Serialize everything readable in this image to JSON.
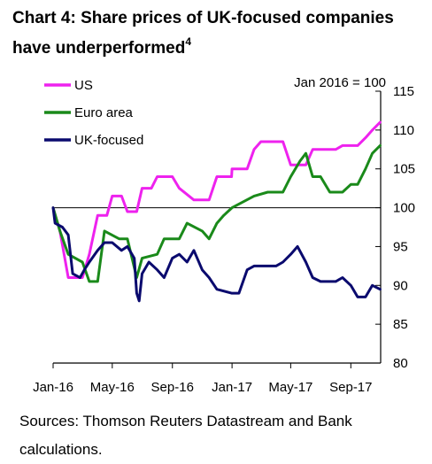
{
  "title": "Chart 4:  Share prices of UK-focused companies have underperformed",
  "title_footnote": "4",
  "sources": "Sources:  Thomson Reuters Datastream and Bank calculations.",
  "chart_data": {
    "type": "line",
    "index_note": "Jan 2016 = 100",
    "ylim": [
      80,
      115
    ],
    "yticks": [
      80,
      85,
      90,
      95,
      100,
      105,
      110,
      115
    ],
    "x_range": [
      "2016-01-01",
      "2017-11-01"
    ],
    "xticks": [
      {
        "label": "Jan-16",
        "date": "2016-01-01"
      },
      {
        "label": "May-16",
        "date": "2016-05-01"
      },
      {
        "label": "Sep-16",
        "date": "2016-09-01"
      },
      {
        "label": "Jan-17",
        "date": "2017-01-01"
      },
      {
        "label": "May-17",
        "date": "2017-05-01"
      },
      {
        "label": "Sep-17",
        "date": "2017-09-01"
      }
    ],
    "gridlines": false,
    "reference_line": 100,
    "legend_position": "top-left",
    "series": [
      {
        "name": "US",
        "color": "#ee22ee",
        "points": [
          [
            "2016-01-01",
            100
          ],
          [
            "2016-01-15",
            97
          ],
          [
            "2016-02-01",
            91
          ],
          [
            "2016-03-01",
            91
          ],
          [
            "2016-03-15",
            94
          ],
          [
            "2016-04-01",
            99
          ],
          [
            "2016-04-20",
            99
          ],
          [
            "2016-05-01",
            101.5
          ],
          [
            "2016-05-20",
            101.5
          ],
          [
            "2016-06-01",
            99.5
          ],
          [
            "2016-06-20",
            99.5
          ],
          [
            "2016-07-01",
            102.5
          ],
          [
            "2016-07-20",
            102.5
          ],
          [
            "2016-08-01",
            104
          ],
          [
            "2016-09-01",
            104
          ],
          [
            "2016-09-15",
            102.5
          ],
          [
            "2016-10-15",
            101
          ],
          [
            "2016-11-15",
            101
          ],
          [
            "2016-12-01",
            104
          ],
          [
            "2016-12-31",
            104
          ],
          [
            "2017-01-01",
            105
          ],
          [
            "2017-02-01",
            105
          ],
          [
            "2017-02-15",
            107.5
          ],
          [
            "2017-03-01",
            108.5
          ],
          [
            "2017-04-15",
            108.5
          ],
          [
            "2017-05-01",
            105.5
          ],
          [
            "2017-06-01",
            105.5
          ],
          [
            "2017-06-15",
            107.5
          ],
          [
            "2017-08-01",
            107.5
          ],
          [
            "2017-08-15",
            108
          ],
          [
            "2017-09-15",
            108
          ],
          [
            "2017-10-01",
            109
          ],
          [
            "2017-10-15",
            110
          ],
          [
            "2017-10-31",
            111
          ]
        ]
      },
      {
        "name": "Euro area",
        "color": "#1a8a1a",
        "points": [
          [
            "2016-01-01",
            100
          ],
          [
            "2016-01-15",
            97
          ],
          [
            "2016-02-01",
            94
          ],
          [
            "2016-03-01",
            93
          ],
          [
            "2016-03-15",
            90.5
          ],
          [
            "2016-04-01",
            90.5
          ],
          [
            "2016-04-15",
            97
          ],
          [
            "2016-05-15",
            96
          ],
          [
            "2016-06-01",
            96
          ],
          [
            "2016-06-20",
            91
          ],
          [
            "2016-07-01",
            93.5
          ],
          [
            "2016-08-01",
            94
          ],
          [
            "2016-08-15",
            96
          ],
          [
            "2016-09-15",
            96
          ],
          [
            "2016-10-01",
            98
          ],
          [
            "2016-11-01",
            97
          ],
          [
            "2016-11-15",
            96
          ],
          [
            "2016-12-01",
            98
          ],
          [
            "2016-12-15",
            99
          ],
          [
            "2017-01-01",
            100
          ],
          [
            "2017-02-15",
            101.5
          ],
          [
            "2017-03-15",
            102
          ],
          [
            "2017-04-15",
            102
          ],
          [
            "2017-05-01",
            104
          ],
          [
            "2017-05-20",
            106
          ],
          [
            "2017-06-01",
            107
          ],
          [
            "2017-06-15",
            104
          ],
          [
            "2017-07-01",
            104
          ],
          [
            "2017-07-20",
            102
          ],
          [
            "2017-08-15",
            102
          ],
          [
            "2017-09-01",
            103
          ],
          [
            "2017-09-15",
            103
          ],
          [
            "2017-10-01",
            105
          ],
          [
            "2017-10-15",
            107
          ],
          [
            "2017-10-31",
            108
          ]
        ]
      },
      {
        "name": "UK-focused",
        "color": "#0a0a6e",
        "points": [
          [
            "2016-01-01",
            100
          ],
          [
            "2016-01-05",
            98
          ],
          [
            "2016-01-20",
            97.5
          ],
          [
            "2016-02-01",
            96.5
          ],
          [
            "2016-02-10",
            91.5
          ],
          [
            "2016-02-25",
            91
          ],
          [
            "2016-03-05",
            92
          ],
          [
            "2016-03-15",
            93
          ],
          [
            "2016-04-01",
            94.5
          ],
          [
            "2016-04-15",
            95.5
          ],
          [
            "2016-05-01",
            95.5
          ],
          [
            "2016-05-20",
            94.5
          ],
          [
            "2016-06-01",
            95
          ],
          [
            "2016-06-15",
            93.5
          ],
          [
            "2016-06-20",
            89
          ],
          [
            "2016-06-25",
            88
          ],
          [
            "2016-07-01",
            91.5
          ],
          [
            "2016-07-15",
            93
          ],
          [
            "2016-08-01",
            92
          ],
          [
            "2016-08-15",
            91
          ],
          [
            "2016-09-01",
            93.5
          ],
          [
            "2016-09-15",
            94
          ],
          [
            "2016-10-01",
            93
          ],
          [
            "2016-10-15",
            94.5
          ],
          [
            "2016-11-01",
            92
          ],
          [
            "2016-11-15",
            91
          ],
          [
            "2016-12-01",
            89.5
          ],
          [
            "2016-12-31",
            89
          ],
          [
            "2017-01-15",
            89
          ],
          [
            "2017-02-01",
            92
          ],
          [
            "2017-02-15",
            92.5
          ],
          [
            "2017-03-15",
            92.5
          ],
          [
            "2017-04-01",
            92.5
          ],
          [
            "2017-04-15",
            93
          ],
          [
            "2017-05-01",
            94
          ],
          [
            "2017-05-15",
            95
          ],
          [
            "2017-06-01",
            93
          ],
          [
            "2017-06-15",
            91
          ],
          [
            "2017-07-01",
            90.5
          ],
          [
            "2017-08-01",
            90.5
          ],
          [
            "2017-08-15",
            91
          ],
          [
            "2017-09-01",
            90
          ],
          [
            "2017-09-15",
            88.5
          ],
          [
            "2017-10-01",
            88.5
          ],
          [
            "2017-10-15",
            90
          ],
          [
            "2017-10-31",
            89.5
          ]
        ]
      }
    ]
  }
}
